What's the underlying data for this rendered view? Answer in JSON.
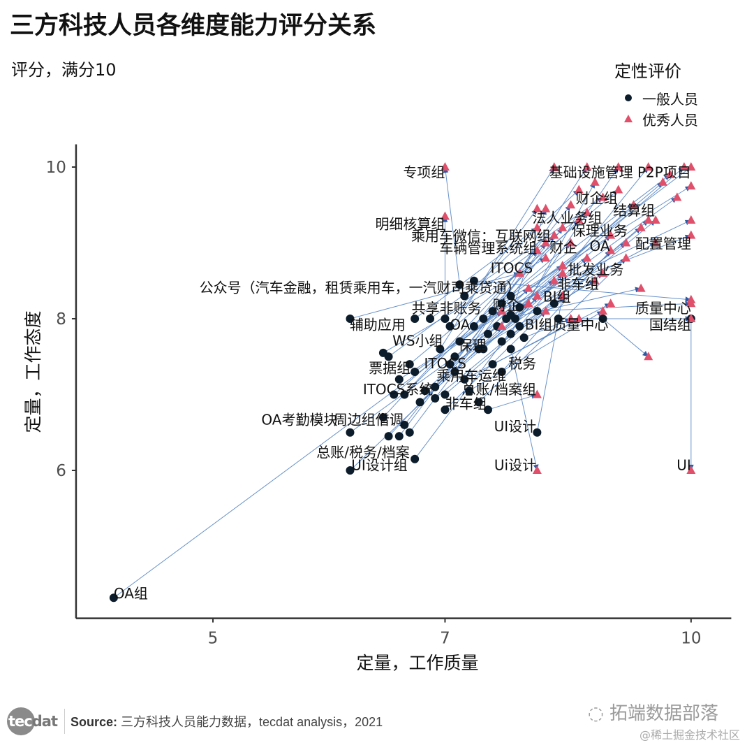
{
  "title": "三方科技人员各维度能力评分关系",
  "subtitle": "评分，满分10",
  "legend": {
    "title": "定性评价",
    "items": [
      {
        "label": "一般人员",
        "shape": "circle",
        "color": "#0c1c2b"
      },
      {
        "label": "优秀人员",
        "shape": "triangle",
        "color": "#e0506a"
      }
    ]
  },
  "footer": {
    "logo": "tecdat",
    "source_label": "Source:",
    "source_text": "三方科技人员能力数据，tecdat analysis，2021",
    "watermark_main": "拓端数据部落",
    "watermark_sub": "@稀土掘金技术社区"
  },
  "colors": {
    "segment": "#4f7fc0",
    "arrow": "#2b5aa5",
    "general": "#0c1c2b",
    "excellent": "#e0506a"
  },
  "chart_data": {
    "type": "scatter",
    "x_scale": "log",
    "xlabel": "定量，工作质量",
    "ylabel": "定量，工作态度",
    "xlim": [
      4.1,
      10.6
    ],
    "ylim": [
      4.05,
      10.3
    ],
    "xticks": [
      5,
      7,
      10
    ],
    "yticks": [
      6,
      8,
      10
    ],
    "grid": false,
    "legend_placement": "top-right",
    "pairs": [
      {
        "from": [
          4.33,
          4.32
        ],
        "to": [
          7.6,
          8.1
        ]
      },
      {
        "from": [
          6.1,
          8.0
        ],
        "to": [
          7.8,
          8.6
        ]
      },
      {
        "from": [
          6.1,
          6.5
        ],
        "to": [
          7.9,
          8.2
        ]
      },
      {
        "from": [
          6.1,
          6.0
        ],
        "to": [
          7.6,
          7.9
        ]
      },
      {
        "from": [
          6.4,
          6.7
        ],
        "to": [
          8.0,
          8.9
        ]
      },
      {
        "from": [
          6.45,
          6.45
        ],
        "to": [
          7.9,
          8.4
        ]
      },
      {
        "from": [
          6.55,
          6.45
        ],
        "to": [
          8.1,
          9.0
        ]
      },
      {
        "from": [
          6.6,
          6.6
        ],
        "to": [
          8.2,
          9.1
        ]
      },
      {
        "from": [
          6.65,
          6.5
        ],
        "to": [
          8.3,
          9.2
        ]
      },
      {
        "from": [
          6.7,
          6.15
        ],
        "to": [
          8.0,
          8.3
        ]
      },
      {
        "from": [
          6.5,
          7.0
        ],
        "to": [
          8.4,
          9.0
        ]
      },
      {
        "from": [
          6.6,
          7.0
        ],
        "to": [
          8.5,
          9.3
        ]
      },
      {
        "from": [
          6.4,
          7.55
        ],
        "to": [
          8.1,
          8.8
        ]
      },
      {
        "from": [
          6.45,
          7.5
        ],
        "to": [
          8.6,
          9.4
        ]
      },
      {
        "from": [
          6.7,
          8.0
        ],
        "to": [
          8.0,
          9.2
        ]
      },
      {
        "from": [
          6.85,
          8.0
        ],
        "to": [
          8.8,
          9.6
        ]
      },
      {
        "from": [
          6.55,
          7.2
        ],
        "to": [
          8.2,
          8.5
        ]
      },
      {
        "from": [
          6.65,
          7.4
        ],
        "to": [
          9.0,
          9.7
        ]
      },
      {
        "from": [
          6.7,
          7.3
        ],
        "to": [
          8.3,
          8.7
        ]
      },
      {
        "from": [
          6.75,
          6.9
        ],
        "to": [
          8.6,
          8.8
        ]
      },
      {
        "from": [
          6.8,
          7.05
        ],
        "to": [
          9.2,
          9.5
        ]
      },
      {
        "from": [
          6.9,
          7.1
        ],
        "to": [
          8.9,
          9.1
        ]
      },
      {
        "from": [
          7.0,
          6.8
        ],
        "to": [
          8.1,
          8.1
        ]
      },
      {
        "from": [
          7.0,
          7.0
        ],
        "to": [
          9.4,
          9.3
        ]
      },
      {
        "from": [
          7.05,
          7.4
        ],
        "to": [
          8.7,
          8.5
        ]
      },
      {
        "from": [
          7.1,
          7.5
        ],
        "to": [
          9.6,
          9.8
        ]
      },
      {
        "from": [
          7.15,
          7.7
        ],
        "to": [
          10,
          10
        ]
      },
      {
        "from": [
          7.2,
          7.2
        ],
        "to": [
          8.5,
          8.0
        ]
      },
      {
        "from": [
          7.0,
          8.0
        ],
        "to": [
          7.0,
          9.35
        ]
      },
      {
        "from": [
          7.15,
          8.45
        ],
        "to": [
          7.0,
          10.0
        ]
      },
      {
        "from": [
          7.3,
          7.9
        ],
        "to": [
          8.4,
          9.5
        ]
      },
      {
        "from": [
          7.35,
          7.6
        ],
        "to": [
          9.1,
          9.0
        ]
      },
      {
        "from": [
          7.4,
          8.0
        ],
        "to": [
          10,
          9.3
        ]
      },
      {
        "from": [
          7.45,
          7.8
        ],
        "to": [
          9.8,
          9.6
        ]
      },
      {
        "from": [
          7.5,
          8.1
        ],
        "to": [
          10,
          9.1
        ]
      },
      {
        "from": [
          7.5,
          7.4
        ],
        "to": [
          8.9,
          8.2
        ]
      },
      {
        "from": [
          7.55,
          7.9
        ],
        "to": [
          9.5,
          9.0
        ]
      },
      {
        "from": [
          7.6,
          8.2
        ],
        "to": [
          10,
          9.75
        ]
      },
      {
        "from": [
          7.6,
          7.7
        ],
        "to": [
          8.8,
          8.6
        ]
      },
      {
        "from": [
          7.65,
          8.0
        ],
        "to": [
          9.3,
          8.4
        ]
      },
      {
        "from": [
          7.7,
          8.3
        ],
        "to": [
          9.7,
          9.9
        ]
      },
      {
        "from": [
          7.7,
          7.8
        ],
        "to": [
          8.7,
          9.8
        ]
      },
      {
        "from": [
          7.75,
          8.0
        ],
        "to": [
          9.0,
          10.0
        ]
      },
      {
        "from": [
          7.8,
          7.9
        ],
        "to": [
          9.4,
          10.0
        ]
      },
      {
        "from": [
          7.85,
          7.75
        ],
        "to": [
          8.4,
          8.0
        ]
      },
      {
        "from": [
          7.45,
          6.8
        ],
        "to": [
          8.0,
          7.0
        ]
      },
      {
        "from": [
          8.0,
          6.5
        ],
        "to": [
          8.3,
          8.3
        ]
      },
      {
        "from": [
          8.25,
          8.0
        ],
        "to": [
          10,
          8.0
        ]
      },
      {
        "from": [
          8.0,
          8.1
        ],
        "to": [
          10,
          8.2
        ]
      },
      {
        "from": [
          8.8,
          8.0
        ],
        "to": [
          9.4,
          7.5
        ]
      },
      {
        "from": [
          7.7,
          7.6
        ],
        "to": [
          8.0,
          6.0
        ]
      },
      {
        "from": [
          10,
          8.0
        ],
        "to": [
          10,
          6.0
        ]
      },
      {
        "from": [
          7.3,
          8.5
        ],
        "to": [
          10,
          8.25
        ]
      },
      {
        "from": [
          7.2,
          8.3
        ],
        "to": [
          8.5,
          9.7
        ]
      },
      {
        "from": [
          7.05,
          7.9
        ],
        "to": [
          8.0,
          9.45
        ]
      },
      {
        "from": [
          6.95,
          7.6
        ],
        "to": [
          8.2,
          10.0
        ]
      },
      {
        "from": [
          7.1,
          7.3
        ],
        "to": [
          8.6,
          10.0
        ]
      },
      {
        "from": [
          7.25,
          7.05
        ],
        "to": [
          8.8,
          8.1
        ]
      },
      {
        "from": [
          7.35,
          6.9
        ],
        "to": [
          9.1,
          8.8
        ]
      },
      {
        "from": [
          6.9,
          6.95
        ],
        "to": [
          9.3,
          9.2
        ]
      },
      {
        "from": [
          7.6,
          7.3
        ],
        "to": [
          8.9,
          8.9
        ]
      },
      {
        "from": [
          7.8,
          8.15
        ],
        "to": [
          9.9,
          10.0
        ]
      },
      {
        "from": [
          8.2,
          8.2
        ],
        "to": [
          9.5,
          9.3
        ]
      },
      {
        "from": [
          7.7,
          8.05
        ],
        "to": [
          8.1,
          9.45
        ]
      },
      {
        "from": [
          7.4,
          7.6
        ],
        "to": [
          8.3,
          8.6
        ]
      }
    ],
    "labels": [
      {
        "text": "专项组",
        "x": 7.0,
        "y": 9.93
      },
      {
        "text": "基础设施管理 P2P项目",
        "x": 10,
        "y": 9.93
      },
      {
        "text": "财企组",
        "x": 8.99,
        "y": 9.59
      },
      {
        "text": "结算组",
        "x": 9.49,
        "y": 9.43
      },
      {
        "text": "法人业务组",
        "x": 8.79,
        "y": 9.33
      },
      {
        "text": "明细核算组",
        "x": 7.0,
        "y": 9.25
      },
      {
        "text": "保理业务",
        "x": 9.12,
        "y": 9.16
      },
      {
        "text": "乘用车微信：互联网组",
        "x": 8.16,
        "y": 9.09
      },
      {
        "text": "配置管理",
        "x": 10,
        "y": 8.99
      },
      {
        "text": "车辆管理系统组",
        "x": 8.0,
        "y": 8.93
      },
      {
        "text": "财企",
        "x": 8.48,
        "y": 8.94
      },
      {
        "text": "OA",
        "x": 8.89,
        "y": 8.96
      },
      {
        "text": "ITOCS",
        "x": 7.95,
        "y": 8.67
      },
      {
        "text": "批发业务",
        "x": 9.07,
        "y": 8.65
      },
      {
        "text": "公众号（汽车金融，租赁乘用车，一汽财司乘贷通）",
        "x": 7.81,
        "y": 8.41
      },
      {
        "text": "非车组",
        "x": 8.75,
        "y": 8.46
      },
      {
        "text": "BI组",
        "x": 8.4,
        "y": 8.29
      },
      {
        "text": "共享非账务",
        "x": 7.38,
        "y": 8.14
      },
      {
        "text": "财企",
        "x": 7.81,
        "y": 8.18
      },
      {
        "text": "质量中心",
        "x": 10,
        "y": 8.14
      },
      {
        "text": "辅助应用",
        "x": 6.61,
        "y": 7.92
      },
      {
        "text": "OA",
        "x": 7.26,
        "y": 7.92
      },
      {
        "text": "BI组质量中心",
        "x": 8.87,
        "y": 7.92
      },
      {
        "text": "国结组",
        "x": 10,
        "y": 7.92
      },
      {
        "text": "WS小组",
        "x": 6.98,
        "y": 7.71
      },
      {
        "text": "保理",
        "x": 7.43,
        "y": 7.65
      },
      {
        "text": "票据组",
        "x": 6.66,
        "y": 7.35
      },
      {
        "text": "ITOCS",
        "x": 7.22,
        "y": 7.41
      },
      {
        "text": "税务",
        "x": 7.99,
        "y": 7.41
      },
      {
        "text": "乘用车运维",
        "x": 7.65,
        "y": 7.25
      },
      {
        "text": "ITOCS系统",
        "x": 6.88,
        "y": 7.07
      },
      {
        "text": "总账/档案组",
        "x": 7.99,
        "y": 7.07
      },
      {
        "text": "非车组",
        "x": 7.44,
        "y": 6.88
      },
      {
        "text": "OA考勤模块",
        "x": 5.99,
        "y": 6.67
      },
      {
        "text": "周边组借调",
        "x": 6.59,
        "y": 6.67
      },
      {
        "text": "UI设计",
        "x": 7.99,
        "y": 6.58
      },
      {
        "text": "总账/税务/档案",
        "x": 6.65,
        "y": 6.24
      },
      {
        "text": "UI设计组",
        "x": 6.63,
        "y": 6.07
      },
      {
        "text": "Ui设计",
        "x": 7.99,
        "y": 6.07
      },
      {
        "text": "UI",
        "x": 10,
        "y": 6.07
      },
      {
        "text": "OA组",
        "x": 4.33,
        "y": 4.38,
        "anchor": "start"
      }
    ]
  }
}
